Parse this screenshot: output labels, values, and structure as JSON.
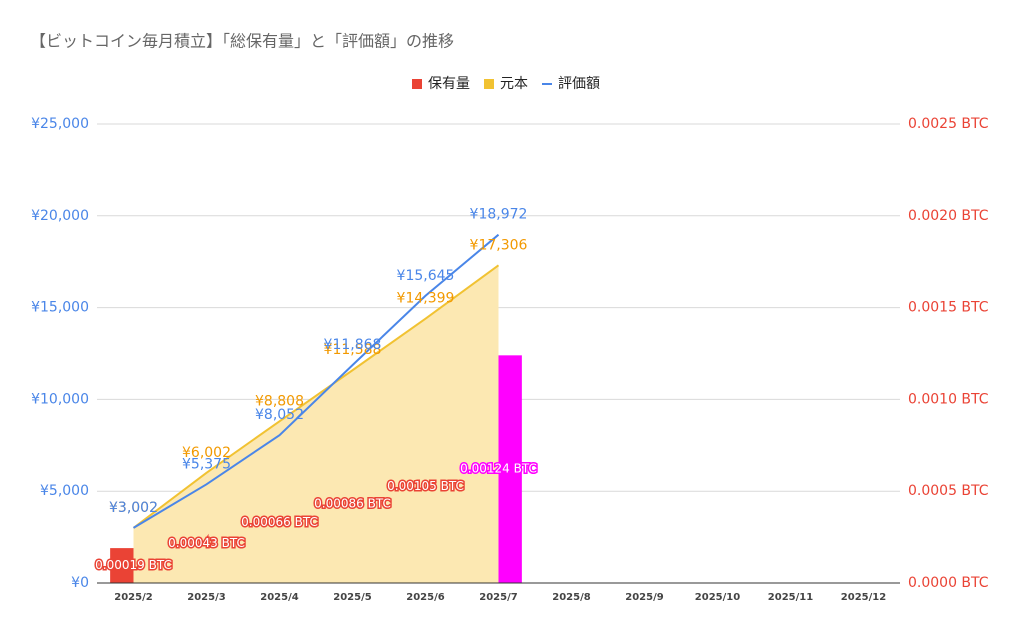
{
  "chart_data": {
    "type": "combo",
    "title": "【ビットコイン毎月積立】「総保有量」と「評価額」の推移",
    "categories": [
      "2025/2",
      "2025/3",
      "2025/4",
      "2025/5",
      "2025/6",
      "2025/7",
      "2025/8",
      "2025/9",
      "2025/10",
      "2025/11",
      "2025/12"
    ],
    "ylim": [
      0,
      25000
    ],
    "yticks": [
      {
        "value": 0,
        "label": "¥0"
      },
      {
        "value": 5000,
        "label": "¥5,000"
      },
      {
        "value": 10000,
        "label": "¥10,000"
      },
      {
        "value": 15000,
        "label": "¥15,000"
      },
      {
        "value": 20000,
        "label": "¥20,000"
      },
      {
        "value": 25000,
        "label": "¥25,000"
      }
    ],
    "y2lim": [
      0,
      0.0025
    ],
    "y2ticks": [
      {
        "value": 0,
        "label": "0.0000 BTC"
      },
      {
        "value": 0.0005,
        "label": "0.0005 BTC"
      },
      {
        "value": 0.001,
        "label": "0.0010 BTC"
      },
      {
        "value": 0.0015,
        "label": "0.0015 BTC"
      },
      {
        "value": 0.002,
        "label": "0.0020 BTC"
      },
      {
        "value": 0.0025,
        "label": "0.0025 BTC"
      }
    ],
    "grid": true,
    "legend": "top",
    "series": [
      {
        "name": "保有量",
        "type": "bar",
        "axis": "y2",
        "color": "#ea4335",
        "colors": [
          "#ea4335",
          "#ea4335",
          "#ea4335",
          "#ea4335",
          "#ea4335",
          "#ff00ff",
          null,
          null,
          null,
          null,
          null
        ],
        "values": [
          0.00019,
          0.00043,
          0.00066,
          0.00086,
          0.00105,
          0.00124,
          null,
          null,
          null,
          null,
          null
        ],
        "value_labels": [
          "0.00019 BTC",
          "0.00043 BTC",
          "0.00066 BTC",
          "0.00086 BTC",
          "0.00105 BTC",
          "0.00124 BTC",
          null,
          null,
          null,
          null,
          null
        ]
      },
      {
        "name": "元本",
        "type": "area",
        "color": "#f1c232",
        "fill": "#fce8b2",
        "label_color": "#f29900",
        "values": [
          3002,
          6002,
          8808,
          11588,
          14399,
          17306,
          null,
          null,
          null,
          null,
          null
        ],
        "value_labels": [
          "¥3,002",
          "¥6,002",
          "¥8,808",
          "¥11,588",
          "¥14,399",
          "¥17,306",
          null,
          null,
          null,
          null,
          null
        ]
      },
      {
        "name": "評価額",
        "type": "line",
        "color": "#4a86e8",
        "label_color": "#4a86e8",
        "values": [
          3002,
          5375,
          8052,
          11868,
          15645,
          18972,
          null,
          null,
          null,
          null,
          null
        ],
        "value_labels": [
          "¥3,002",
          "¥5,375",
          "¥8,052",
          "¥11,868",
          "¥15,645",
          "¥18,972",
          null,
          null,
          null,
          null,
          null
        ]
      }
    ]
  }
}
